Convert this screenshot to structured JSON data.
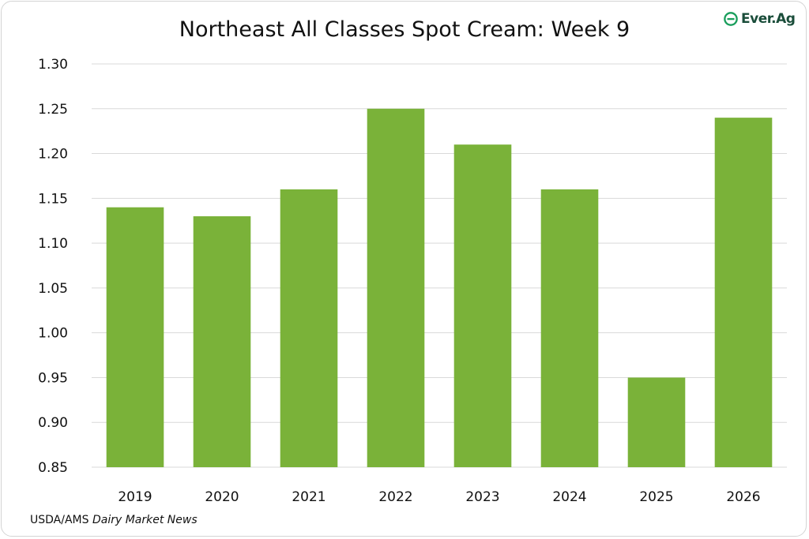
{
  "logo": {
    "text": "Ever.Ag",
    "icon": "everag-logo-icon",
    "colors": {
      "mark": "#1a9e5c",
      "text": "#1a4d3a"
    }
  },
  "source": {
    "prefix": "USDA/AMS",
    "italic": "Dairy Market News"
  },
  "chart_data": {
    "type": "bar",
    "title": "Northeast All Classes Spot Cream: Week 9",
    "xlabel": "",
    "ylabel": "",
    "categories": [
      "2019",
      "2020",
      "2021",
      "2022",
      "2023",
      "2024",
      "2025",
      "2026"
    ],
    "values": [
      1.14,
      1.13,
      1.16,
      1.25,
      1.21,
      1.16,
      0.95,
      1.24
    ],
    "ylim": [
      0.85,
      1.3
    ],
    "yticks": [
      "0.85",
      "0.90",
      "0.95",
      "1.00",
      "1.05",
      "1.10",
      "1.15",
      "1.20",
      "1.25",
      "1.30"
    ],
    "grid": true,
    "legend": "none",
    "bar_color": "#7ab239",
    "grid_color": "#d9d9d9"
  }
}
